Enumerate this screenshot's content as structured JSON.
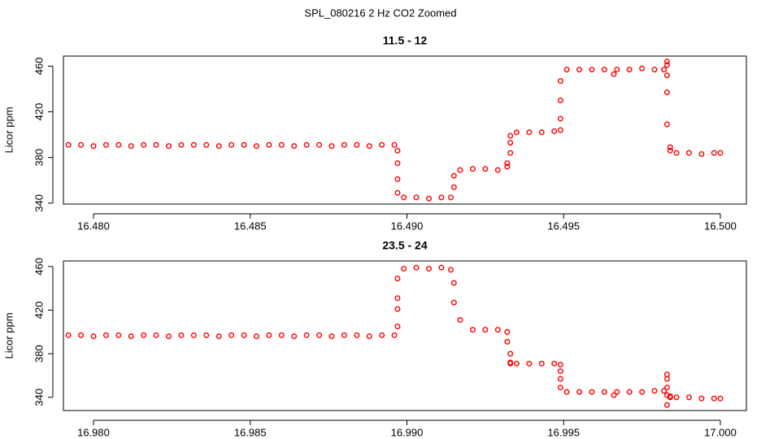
{
  "title": "SPL_080216  2 Hz CO2 Zoomed",
  "chart_data": [
    {
      "type": "scatter",
      "title": "11.5 - 12",
      "y_label": "Licor ppm",
      "color": "#ff0000",
      "x": [
        16.4792,
        16.4796,
        16.48,
        16.4804,
        16.4808,
        16.4812,
        16.4816,
        16.482,
        16.4824,
        16.4828,
        16.4832,
        16.4836,
        16.484,
        16.4844,
        16.4848,
        16.4852,
        16.4856,
        16.486,
        16.4864,
        16.4868,
        16.4872,
        16.4876,
        16.488,
        16.4884,
        16.4888,
        16.4892,
        16.4896,
        16.4897,
        16.4897,
        16.4897,
        16.4897,
        16.4899,
        16.4903,
        16.4907,
        16.4911,
        16.4914,
        16.4915,
        16.4915,
        16.4917,
        16.4921,
        16.4925,
        16.4929,
        16.4932,
        16.4932,
        16.4933,
        16.4933,
        16.4933,
        16.4935,
        16.4939,
        16.4943,
        16.4947,
        16.4949,
        16.4949,
        16.4949,
        16.4949,
        16.4951,
        16.4955,
        16.4959,
        16.4963,
        16.4966,
        16.4967,
        16.4971,
        16.4975,
        16.4979,
        16.4982,
        16.4983,
        16.4983,
        16.4983,
        16.4983,
        16.4983,
        16.4984,
        16.4984,
        16.4986,
        16.499,
        16.4994,
        16.4998,
        16.5
      ],
      "values": [
        391,
        391,
        390,
        391,
        391,
        390,
        391,
        391,
        390,
        391,
        391,
        391,
        390,
        391,
        391,
        390,
        391,
        391,
        390,
        391,
        391,
        390,
        391,
        391,
        390,
        391,
        391,
        386,
        375,
        361,
        349,
        345,
        345,
        344,
        345,
        345,
        354,
        364,
        369,
        370,
        370,
        369,
        372,
        375,
        384,
        393,
        399,
        402,
        402,
        402,
        403,
        404,
        414,
        430,
        447,
        457,
        457,
        457,
        457,
        453,
        457,
        457,
        458,
        457,
        457,
        464,
        461,
        452,
        437,
        409,
        389,
        386,
        384,
        384,
        383,
        384,
        384
      ],
      "xlim": [
        16.47904,
        16.50083
      ],
      "xticks": [
        {
          "value": 16.48,
          "label": "16.480"
        },
        16.485,
        {
          "value": 16.49,
          "label": "16.490"
        },
        16.495,
        {
          "value": 16.5,
          "label": "16.500"
        }
      ],
      "ylim": [
        339.2,
        468.8
      ],
      "yticks": [
        340,
        380,
        420,
        460
      ]
    },
    {
      "type": "scatter",
      "title": "23.5 - 24",
      "y_label": "Licor ppm",
      "color": "#ff0000",
      "x": [
        16.9792,
        16.9796,
        16.98,
        16.9804,
        16.9808,
        16.9812,
        16.9816,
        16.982,
        16.9824,
        16.9828,
        16.9832,
        16.9836,
        16.984,
        16.9844,
        16.9848,
        16.9852,
        16.9856,
        16.986,
        16.9864,
        16.9868,
        16.9872,
        16.9876,
        16.988,
        16.9884,
        16.9888,
        16.9892,
        16.9896,
        16.9897,
        16.9897,
        16.9897,
        16.9897,
        16.9899,
        16.9903,
        16.9907,
        16.9911,
        16.9914,
        16.9915,
        16.9915,
        16.9917,
        16.9921,
        16.9925,
        16.9929,
        16.9932,
        16.9932,
        16.9933,
        16.9933,
        16.9933,
        16.9935,
        16.9939,
        16.9943,
        16.9947,
        16.9949,
        16.9949,
        16.9949,
        16.9949,
        16.9951,
        16.9955,
        16.9959,
        16.9963,
        16.9966,
        16.9967,
        16.9971,
        16.9975,
        16.9979,
        16.9982,
        16.9983,
        16.9983,
        16.9983,
        16.9983,
        16.9983,
        16.9984,
        16.9984,
        16.9986,
        16.999,
        16.9994,
        16.9998,
        17.0
      ],
      "values": [
        397,
        397,
        396,
        397,
        397,
        396,
        397,
        397,
        396,
        397,
        397,
        397,
        396,
        397,
        397,
        396,
        397,
        397,
        396,
        397,
        397,
        396,
        397,
        397,
        396,
        397,
        397,
        405,
        421,
        431,
        449,
        458,
        459,
        458,
        459,
        457,
        445,
        427,
        411,
        402,
        402,
        402,
        400,
        391,
        380,
        372,
        371,
        371,
        371,
        371,
        371,
        370,
        364,
        357,
        349,
        345,
        345,
        345,
        345,
        342,
        345,
        345,
        345,
        346,
        346,
        361,
        357,
        349,
        333,
        342,
        341,
        340,
        340,
        340,
        339,
        339,
        339
      ],
      "xlim": [
        16.97904,
        17.00083
      ],
      "xticks": [
        {
          "value": 16.98,
          "label": "16.980"
        },
        16.985,
        {
          "value": 16.99,
          "label": "16.990"
        },
        16.995,
        {
          "value": 17.0,
          "label": "17.000"
        }
      ],
      "ylim": [
        327.9,
        465.1
      ],
      "yticks": [
        340,
        380,
        420,
        460
      ]
    }
  ]
}
